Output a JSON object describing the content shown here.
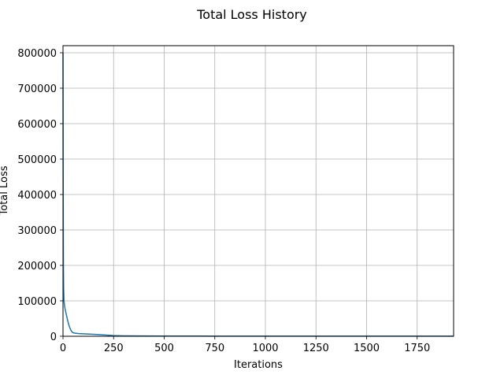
{
  "chart_data": {
    "type": "line",
    "title": "Total Loss History",
    "xlabel": "Iterations",
    "ylabel": "Total Loss",
    "xlim": [
      0,
      1930
    ],
    "ylim": [
      0,
      820000
    ],
    "grid": true,
    "x_ticks": [
      0,
      250,
      500,
      750,
      1000,
      1250,
      1500,
      1750
    ],
    "x_tick_labels": [
      "0",
      "250",
      "500",
      "750",
      "1000",
      "1250",
      "1500",
      "1750"
    ],
    "y_ticks": [
      0,
      100000,
      200000,
      300000,
      400000,
      500000,
      600000,
      700000,
      800000
    ],
    "y_tick_labels": [
      "0",
      "100000",
      "200000",
      "300000",
      "400000",
      "500000",
      "600000",
      "700000",
      "800000"
    ],
    "series": [
      {
        "color": "#1f77b4",
        "x": [
          0,
          1,
          2,
          3,
          5,
          8,
          10,
          15,
          20,
          25,
          30,
          35,
          40,
          45,
          50,
          60,
          70,
          80,
          100,
          150,
          200,
          250,
          300,
          400,
          500,
          750,
          1000,
          1250,
          1500,
          1750,
          1930
        ],
        "y": [
          800000,
          400000,
          200000,
          140000,
          100000,
          85000,
          78000,
          65000,
          52000,
          40000,
          30000,
          22000,
          16000,
          12000,
          10000,
          8500,
          8000,
          7500,
          7000,
          5500,
          4000,
          2000,
          1200,
          800,
          600,
          400,
          300,
          250,
          200,
          180,
          150
        ]
      }
    ]
  }
}
